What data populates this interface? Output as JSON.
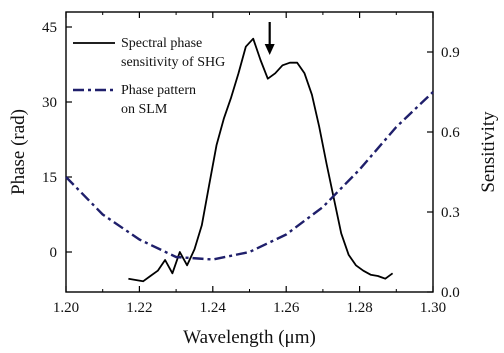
{
  "chart_data": {
    "type": "line",
    "xlabel": "Wavelength (μm)",
    "ylabel_left": "Phase (rad)",
    "ylabel_right": "Sensitivity",
    "xlim": [
      1.2,
      1.3
    ],
    "ylim_left": [
      -8,
      48
    ],
    "ylim_right": [
      0.0,
      1.05
    ],
    "x_ticks": [
      "1.20",
      "1.22",
      "1.24",
      "1.26",
      "1.28",
      "1.30"
    ],
    "x_tick_values": [
      1.2,
      1.22,
      1.24,
      1.26,
      1.28,
      1.3
    ],
    "y_left_ticks": [
      "0",
      "15",
      "30",
      "45"
    ],
    "y_left_tick_values": [
      0,
      15,
      30,
      45
    ],
    "y_right_ticks": [
      "0.0",
      "0.3",
      "0.6",
      "0.9"
    ],
    "y_right_tick_values": [
      0.0,
      0.3,
      0.6,
      0.9
    ],
    "grid": false,
    "legend_position": "top-left",
    "arrow_annotation_x": 1.2555,
    "series": [
      {
        "name": "Spectral phase sensitivity of SHG",
        "axis": "right",
        "style": "solid",
        "color": "#000000",
        "x": [
          1.217,
          1.219,
          1.221,
          1.223,
          1.225,
          1.227,
          1.229,
          1.231,
          1.233,
          1.235,
          1.237,
          1.239,
          1.241,
          1.243,
          1.245,
          1.247,
          1.249,
          1.251,
          1.253,
          1.255,
          1.257,
          1.259,
          1.261,
          1.263,
          1.265,
          1.267,
          1.269,
          1.271,
          1.273,
          1.275,
          1.277,
          1.279,
          1.281,
          1.283,
          1.285,
          1.287,
          1.289
        ],
        "values": [
          0.05,
          0.045,
          0.04,
          0.06,
          0.08,
          0.12,
          0.07,
          0.15,
          0.1,
          0.16,
          0.25,
          0.4,
          0.55,
          0.65,
          0.73,
          0.82,
          0.92,
          0.95,
          0.87,
          0.8,
          0.82,
          0.85,
          0.86,
          0.86,
          0.82,
          0.74,
          0.62,
          0.48,
          0.35,
          0.22,
          0.14,
          0.1,
          0.08,
          0.065,
          0.06,
          0.05,
          0.07
        ]
      },
      {
        "name": "Phase pattern on SLM",
        "axis": "left",
        "style": "dash-dot",
        "color": "#1f1f6b",
        "x": [
          1.2,
          1.21,
          1.22,
          1.23,
          1.24,
          1.25,
          1.26,
          1.27,
          1.28,
          1.29,
          1.3
        ],
        "values": [
          15.0,
          7.5,
          2.5,
          -1.0,
          -1.5,
          0.0,
          3.5,
          9.0,
          16.5,
          25.0,
          32.0
        ]
      }
    ]
  }
}
